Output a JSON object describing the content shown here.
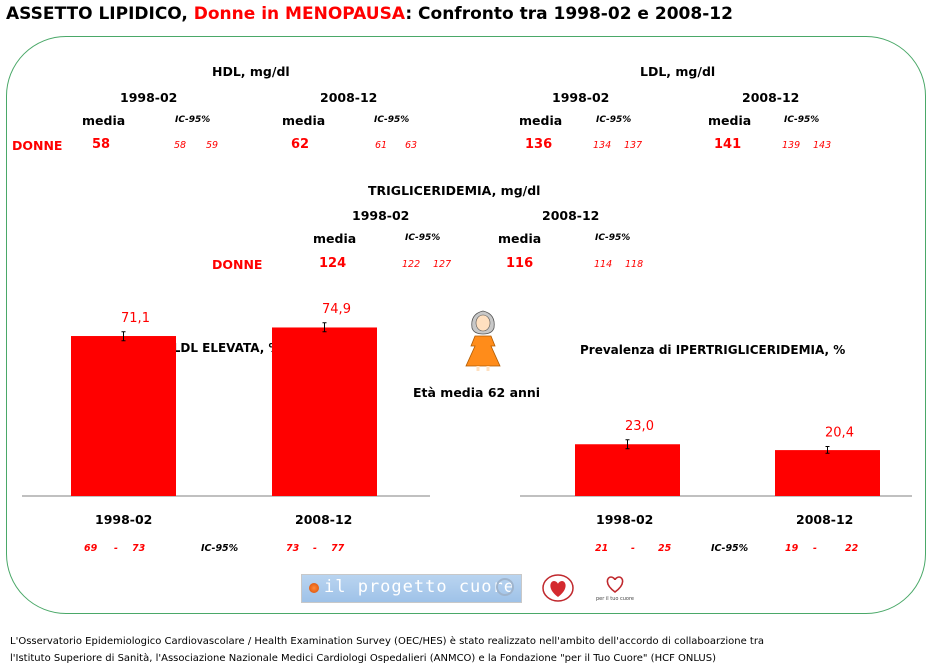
{
  "title": {
    "part1": "ASSETTO LIPIDICO, ",
    "part2": "Donne in MENOPAUSA",
    "part3": ": Confronto tra 1998-02 e 2008-12"
  },
  "labels": {
    "media": "media",
    "ic95": "IC-95%",
    "donne": "DONNE",
    "p1": "1998-02",
    "p2": "2008-12"
  },
  "hdl": {
    "header": "HDL, mg/dl",
    "p1_media": "58",
    "p1_ic_low": "58",
    "p1_ic_high": "59",
    "p2_media": "62",
    "p2_ic_low": "61",
    "p2_ic_high": "63"
  },
  "ldl": {
    "header": "LDL, mg/dl",
    "p1_media": "136",
    "p1_ic_low": "134",
    "p1_ic_high": "137",
    "p2_media": "141",
    "p2_ic_low": "139",
    "p2_ic_high": "143"
  },
  "trig": {
    "header": "TRIGLICERIDEMIA, mg/dl",
    "p1_media": "124",
    "p1_ic_low": "122",
    "p1_ic_high": "127",
    "p2_media": "116",
    "p2_ic_low": "114",
    "p2_ic_high": "118"
  },
  "age_text": "Età media 62 anni",
  "colors": {
    "bar": "#ff0000",
    "text_red": "#ff0000",
    "frame": "#4aa868",
    "axis": "#808080"
  },
  "icons": {
    "figure": "woman-figure-icon"
  },
  "chart_data": [
    {
      "type": "bar",
      "title": "Prevalenza di LDL ELEVATA, %",
      "categories": [
        "1998-02",
        "2008-12"
      ],
      "values": [
        71.1,
        74.9
      ],
      "value_labels": [
        "71,1",
        "74,9"
      ],
      "ci": [
        [
          69,
          73
        ],
        [
          73,
          77
        ]
      ],
      "ci_text": {
        "low1": "69",
        "dash": "-",
        "high1": "73",
        "label": "IC-95%",
        "low2": "73",
        "high2": "77"
      },
      "ylim": [
        0,
        100
      ]
    },
    {
      "type": "bar",
      "title": "Prevalenza di IPERTRIGLICERIDEMIA, %",
      "categories": [
        "1998-02",
        "2008-12"
      ],
      "values": [
        23.0,
        20.4
      ],
      "value_labels": [
        "23,0",
        "20,4"
      ],
      "ci": [
        [
          21,
          25
        ],
        [
          19,
          22
        ]
      ],
      "ci_text": {
        "low1": "21",
        "dash": "-",
        "high1": "25",
        "label": "IC-95%",
        "low2": "19",
        "high2": "22"
      },
      "ylim": [
        0,
        100
      ]
    }
  ],
  "logos": {
    "progetto": "il progetto cuore",
    "anmco": "ANMCO",
    "fondazione": "per il tuo cuore"
  },
  "footer": {
    "line1": "L'Osservatorio Epidemiologico Cardiovascolare / Health Examination Survey (OEC/HES) è stato realizzato nell'ambito dell'accordo di collaboarzione tra",
    "line2": "l'Istituto Superiore di Sanità, l'Associazione Nazionale Medici Cardiologi Ospedalieri (ANMCO) e la Fondazione \"per il Tuo Cuore\" (HCF ONLUS)"
  }
}
